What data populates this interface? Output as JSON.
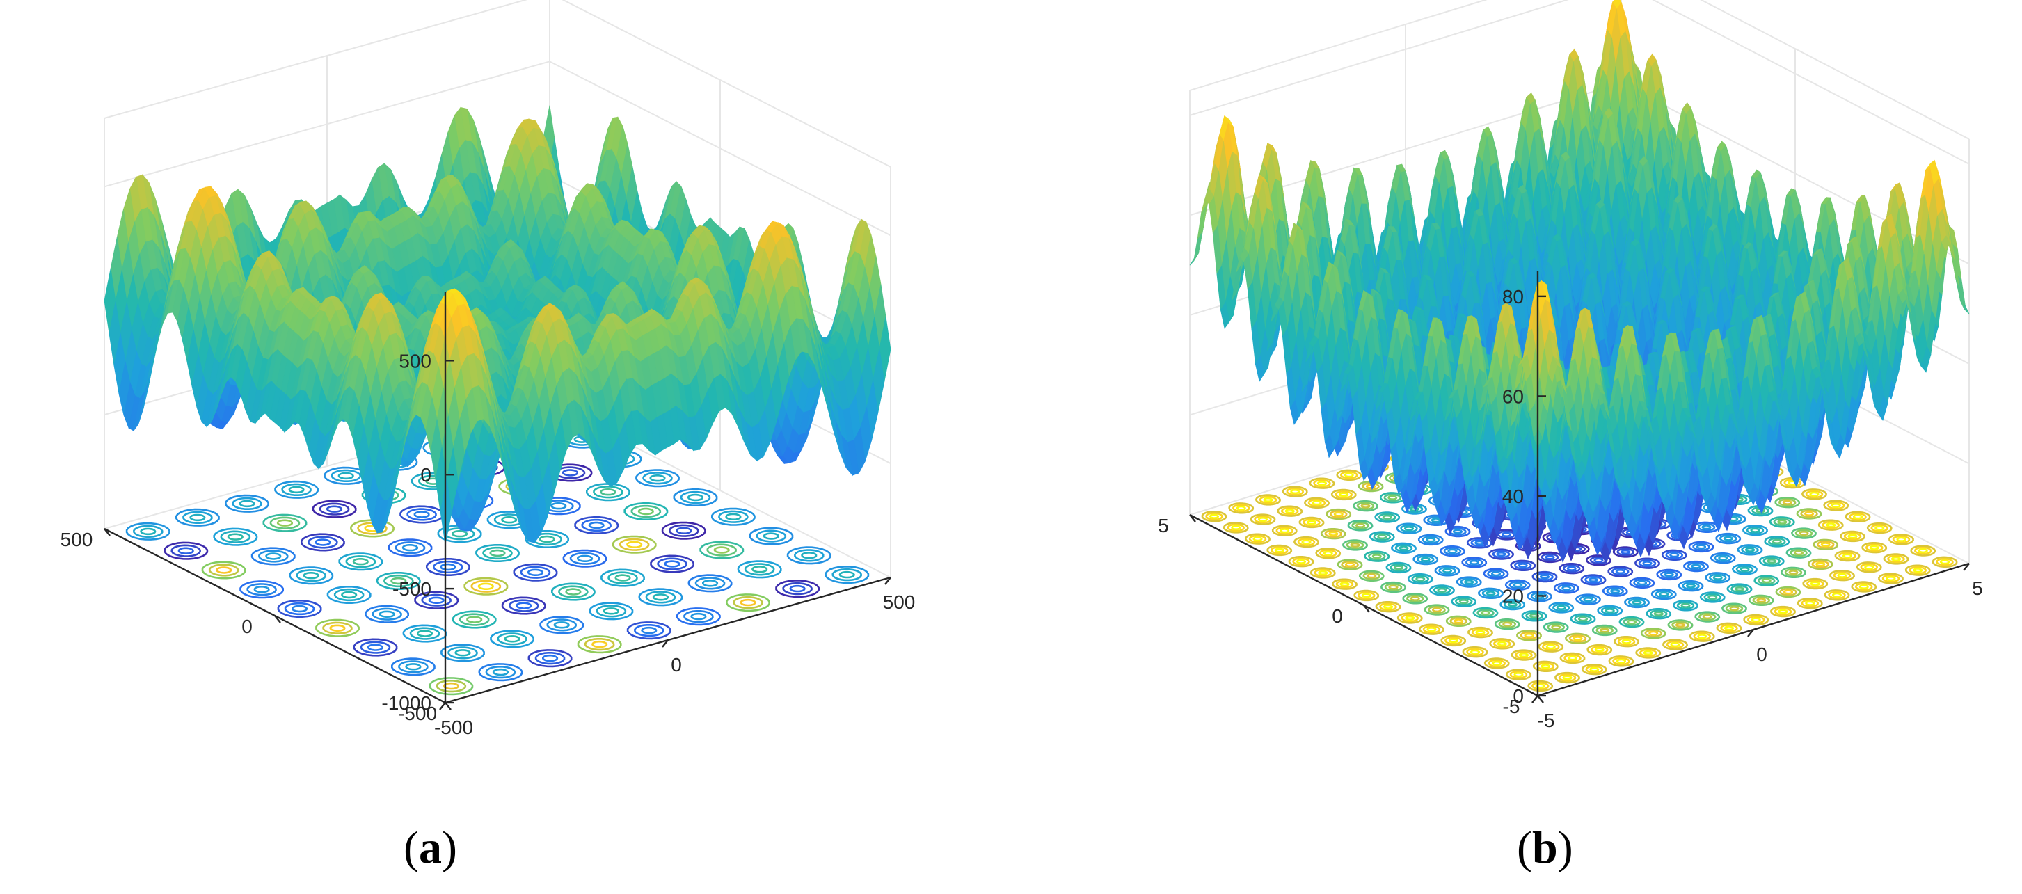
{
  "chart_data": [
    {
      "type": "surface",
      "panel_label": "a",
      "title": "",
      "xlabel": "",
      "ylabel": "",
      "zlabel": "",
      "x_range": [
        -500,
        500
      ],
      "y_range": [
        -500,
        500
      ],
      "z_range": [
        -1000,
        800
      ],
      "x_ticks": [
        "-500",
        "0",
        "500"
      ],
      "y_ticks": [
        "500",
        "0",
        "-500"
      ],
      "z_ticks": [
        "500",
        "0",
        "-500",
        "-1000"
      ],
      "contour_projection": true,
      "colormap": "parula",
      "grid": true
    },
    {
      "type": "surface",
      "panel_label": "b",
      "title": "",
      "xlabel": "",
      "ylabel": "",
      "zlabel": "",
      "x_range": [
        -5,
        5
      ],
      "y_range": [
        -5,
        5
      ],
      "z_range": [
        0,
        85
      ],
      "x_ticks": [
        "-5",
        "0",
        "5"
      ],
      "y_ticks": [
        "5",
        "0",
        "-5"
      ],
      "z_ticks": [
        "80",
        "60",
        "40",
        "20",
        "0"
      ],
      "contour_projection": true,
      "colormap": "parula",
      "grid": true
    }
  ],
  "colors": {
    "low": "#3e26a8",
    "mid_low": "#1f8fd9",
    "mid": "#22b7b0",
    "mid_high": "#80cc62",
    "high": "#fac228",
    "peak": "#f9fb0e",
    "axis": "#262626",
    "grid": "#e6e6e6"
  }
}
